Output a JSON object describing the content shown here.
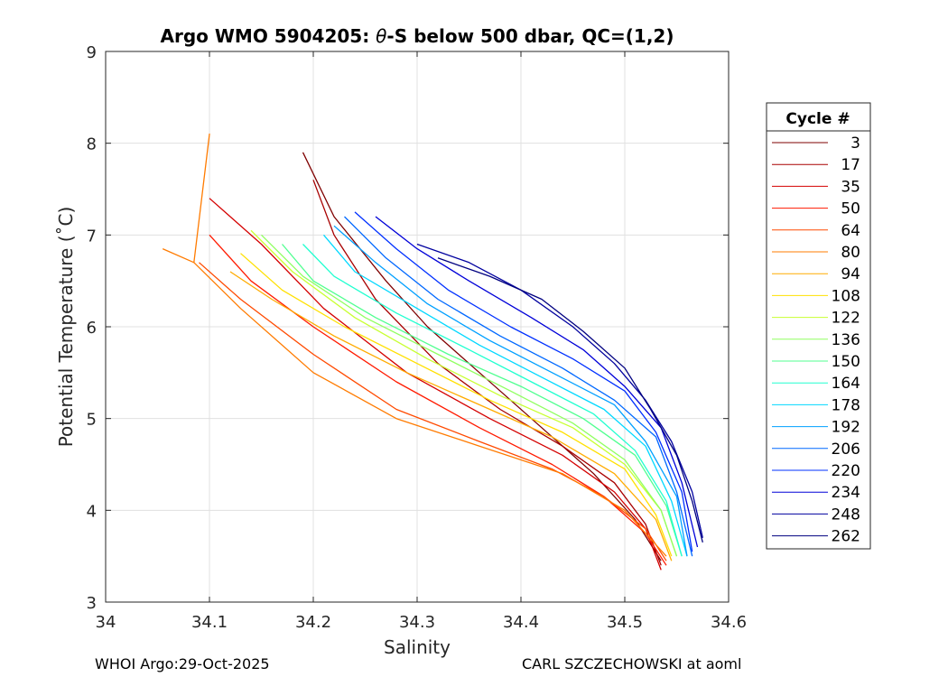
{
  "chart_data": {
    "type": "line",
    "title": "Argo WMO 5904205: θ-S below 500 dbar,  QC=(1,2)",
    "title_prefix": "Argo WMO 5904205: ",
    "title_theta": "θ",
    "title_suffix": "-S below 500 dbar,  QC=(1,2)",
    "xlabel": "Salinity",
    "ylabel": "Potential Temperature (˚C)",
    "xlim": [
      34.0,
      34.6
    ],
    "ylim": [
      3,
      9
    ],
    "xticks": [
      "34",
      "34.1",
      "34.2",
      "34.3",
      "34.4",
      "34.5",
      "34.6"
    ],
    "yticks": [
      "3",
      "4",
      "5",
      "6",
      "7",
      "8",
      "9"
    ],
    "grid": true,
    "legend": {
      "title": "Cycle #",
      "placement": "right",
      "entries": [
        {
          "label": "3",
          "color": "#7f0000"
        },
        {
          "label": "17",
          "color": "#a80000"
        },
        {
          "label": "35",
          "color": "#d40000"
        },
        {
          "label": "50",
          "color": "#ff1a00"
        },
        {
          "label": "64",
          "color": "#ff4a00"
        },
        {
          "label": "80",
          "color": "#ff7b00"
        },
        {
          "label": "94",
          "color": "#ffab00"
        },
        {
          "label": "108",
          "color": "#ffe000"
        },
        {
          "label": "122",
          "color": "#c8ff30"
        },
        {
          "label": "136",
          "color": "#90ff60"
        },
        {
          "label": "150",
          "color": "#50ff90"
        },
        {
          "label": "164",
          "color": "#20ffd0"
        },
        {
          "label": "178",
          "color": "#00d8ff"
        },
        {
          "label": "192",
          "color": "#00a0ff"
        },
        {
          "label": "206",
          "color": "#0068ff"
        },
        {
          "label": "220",
          "color": "#0030ff"
        },
        {
          "label": "234",
          "color": "#0000d8"
        },
        {
          "label": "248",
          "color": "#00009f"
        },
        {
          "label": "262",
          "color": "#000080"
        }
      ]
    },
    "series": [
      {
        "name": "3",
        "color": "#7f0000",
        "s": [
          34.19,
          34.22,
          34.27,
          34.31,
          34.36,
          34.42,
          34.47,
          34.51,
          34.535
        ],
        "t": [
          7.9,
          7.2,
          6.5,
          6.0,
          5.5,
          4.9,
          4.4,
          3.9,
          3.45
        ]
      },
      {
        "name": "17",
        "color": "#a80000",
        "s": [
          34.2,
          34.22,
          34.26,
          34.32,
          34.38,
          34.44,
          34.49,
          34.52,
          34.535
        ],
        "t": [
          7.6,
          7.0,
          6.3,
          5.6,
          5.1,
          4.7,
          4.3,
          3.85,
          3.4
        ]
      },
      {
        "name": "35",
        "color": "#d40000",
        "s": [
          34.1,
          34.15,
          34.21,
          34.29,
          34.37,
          34.44,
          34.49,
          34.52,
          34.535
        ],
        "t": [
          7.4,
          6.9,
          6.2,
          5.5,
          5.0,
          4.6,
          4.2,
          3.8,
          3.35
        ]
      },
      {
        "name": "50",
        "color": "#ff1a00",
        "s": [
          34.1,
          34.14,
          34.2,
          34.28,
          34.36,
          34.43,
          34.48,
          34.52,
          34.54
        ],
        "t": [
          7.0,
          6.5,
          6.0,
          5.4,
          4.9,
          4.5,
          4.15,
          3.75,
          3.4
        ]
      },
      {
        "name": "64",
        "color": "#ff4a00",
        "s": [
          34.09,
          34.13,
          34.2,
          34.28,
          34.36,
          34.43,
          34.48,
          34.52,
          34.54
        ],
        "t": [
          6.7,
          6.3,
          5.7,
          5.1,
          4.75,
          4.45,
          4.15,
          3.8,
          3.45
        ]
      },
      {
        "name": "80",
        "color": "#ff7b00",
        "s": [
          34.055,
          34.085,
          34.1,
          34.085,
          34.13,
          34.2,
          34.28,
          34.36,
          34.44,
          34.5,
          34.54
        ],
        "t": [
          6.85,
          6.7,
          8.1,
          6.7,
          6.2,
          5.5,
          5.0,
          4.7,
          4.4,
          4.0,
          3.5
        ]
      },
      {
        "name": "94",
        "color": "#ffab00",
        "s": [
          34.12,
          34.16,
          34.22,
          34.29,
          34.36,
          34.43,
          34.49,
          34.53,
          34.545
        ],
        "t": [
          6.6,
          6.3,
          5.9,
          5.5,
          5.15,
          4.8,
          4.4,
          3.9,
          3.45
        ]
      },
      {
        "name": "108",
        "color": "#ffe000",
        "s": [
          34.13,
          34.17,
          34.23,
          34.3,
          34.37,
          34.44,
          34.5,
          34.53,
          34.545
        ],
        "t": [
          6.8,
          6.4,
          6.0,
          5.6,
          5.2,
          4.85,
          4.45,
          3.95,
          3.5
        ]
      },
      {
        "name": "122",
        "color": "#c8ff30",
        "s": [
          34.14,
          34.18,
          34.24,
          34.31,
          34.38,
          34.45,
          34.5,
          34.535,
          34.55
        ],
        "t": [
          7.05,
          6.6,
          6.1,
          5.65,
          5.25,
          4.9,
          4.5,
          4.0,
          3.5
        ]
      },
      {
        "name": "136",
        "color": "#90ff60",
        "s": [
          34.15,
          34.19,
          34.25,
          34.32,
          34.39,
          34.45,
          34.5,
          34.535,
          34.55
        ],
        "t": [
          7.0,
          6.55,
          6.1,
          5.7,
          5.3,
          4.95,
          4.55,
          4.0,
          3.5
        ]
      },
      {
        "name": "150",
        "color": "#50ff90",
        "s": [
          34.17,
          34.2,
          34.26,
          34.33,
          34.4,
          34.46,
          34.51,
          34.54,
          34.555
        ],
        "t": [
          6.9,
          6.5,
          6.1,
          5.7,
          5.35,
          5.0,
          4.6,
          4.05,
          3.5
        ]
      },
      {
        "name": "164",
        "color": "#20ffd0",
        "s": [
          34.19,
          34.22,
          34.28,
          34.35,
          34.41,
          34.47,
          34.51,
          34.54,
          34.555
        ],
        "t": [
          6.9,
          6.55,
          6.15,
          5.75,
          5.4,
          5.05,
          4.65,
          4.1,
          3.5
        ]
      },
      {
        "name": "178",
        "color": "#00d8ff",
        "s": [
          34.21,
          34.24,
          34.3,
          34.36,
          34.42,
          34.48,
          34.52,
          34.545,
          34.56
        ],
        "t": [
          7.0,
          6.6,
          6.2,
          5.8,
          5.45,
          5.1,
          4.7,
          4.1,
          3.5
        ]
      },
      {
        "name": "192",
        "color": "#00a0ff",
        "s": [
          34.22,
          34.26,
          34.31,
          34.37,
          34.43,
          34.49,
          34.52,
          34.55,
          34.56
        ],
        "t": [
          7.1,
          6.7,
          6.25,
          5.85,
          5.5,
          5.15,
          4.75,
          4.15,
          3.5
        ]
      },
      {
        "name": "206",
        "color": "#0068ff",
        "s": [
          34.23,
          34.27,
          34.32,
          34.38,
          34.44,
          34.49,
          34.53,
          34.55,
          34.565
        ],
        "t": [
          7.2,
          6.75,
          6.3,
          5.9,
          5.55,
          5.2,
          4.8,
          4.2,
          3.5
        ]
      },
      {
        "name": "220",
        "color": "#0030ff",
        "s": [
          34.24,
          34.28,
          34.33,
          34.39,
          34.45,
          34.5,
          34.53,
          34.555,
          34.565
        ],
        "t": [
          7.25,
          6.85,
          6.4,
          6.0,
          5.65,
          5.3,
          4.85,
          4.2,
          3.55
        ]
      },
      {
        "name": "234",
        "color": "#0000d8",
        "s": [
          34.26,
          34.3,
          34.35,
          34.41,
          34.46,
          34.5,
          34.535,
          34.555,
          34.57
        ],
        "t": [
          7.2,
          6.85,
          6.5,
          6.1,
          5.75,
          5.35,
          4.9,
          4.3,
          3.6
        ]
      },
      {
        "name": "248",
        "color": "#00009f",
        "s": [
          34.3,
          34.35,
          34.4,
          34.45,
          34.49,
          34.52,
          34.545,
          34.565,
          34.575
        ],
        "t": [
          6.9,
          6.7,
          6.4,
          6.0,
          5.6,
          5.2,
          4.75,
          4.2,
          3.7
        ]
      },
      {
        "name": "262",
        "color": "#000080",
        "s": [
          34.32,
          34.37,
          34.42,
          34.46,
          34.5,
          34.525,
          34.55,
          34.565,
          34.575
        ],
        "t": [
          6.75,
          6.55,
          6.3,
          5.95,
          5.55,
          5.1,
          4.6,
          4.1,
          3.65
        ]
      }
    ]
  },
  "footer": {
    "left": "WHOI Argo:29-Oct-2025",
    "right": "CARL SZCZECHOWSKI at aoml"
  }
}
